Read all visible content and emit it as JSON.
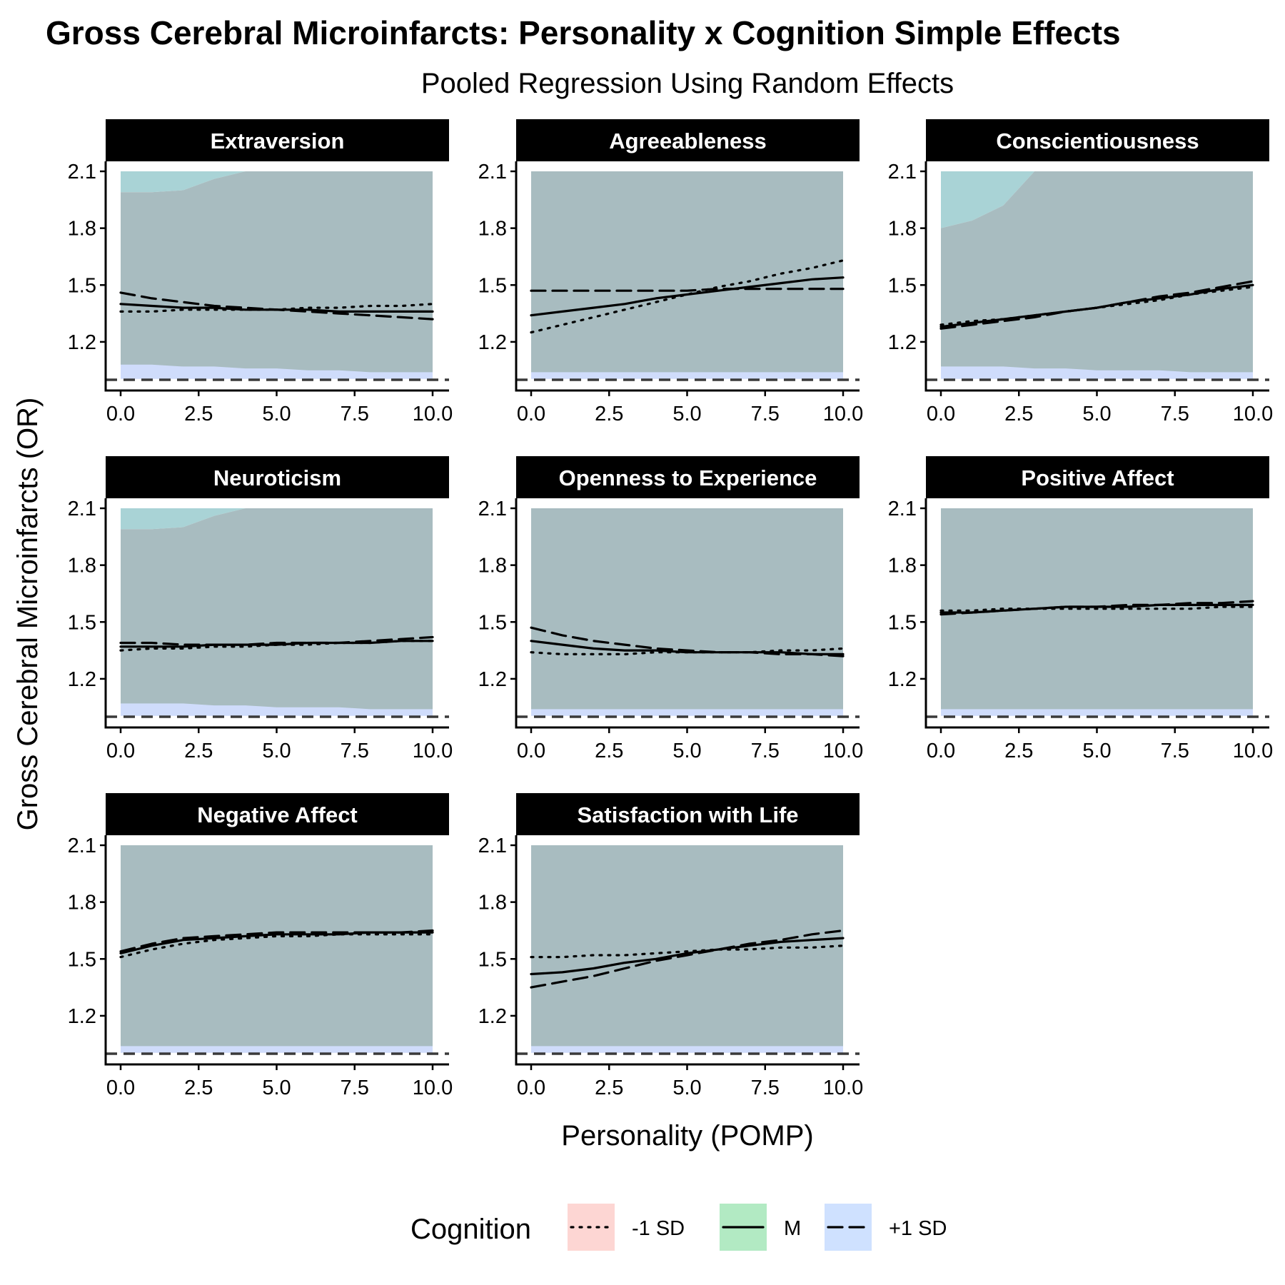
{
  "chart_data": {
    "type": "line",
    "title": "Gross Cerebral Microinfarcts: Personality x Cognition Simple Effects",
    "subtitle": "Pooled Regression Using Random Effects",
    "xlabel": "Personality (POMP)",
    "ylabel": "Gross Cerebral Microinfarcts (OR)",
    "xlim": [
      0,
      10
    ],
    "ylim": [
      1.0,
      2.1
    ],
    "x_ticks": [
      0,
      2.5,
      5,
      7.5,
      10
    ],
    "x_tick_labels": [
      "0.0",
      "2.5",
      "5.0",
      "7.5",
      "10.0"
    ],
    "y_ticks": [
      1.2,
      1.5,
      1.8,
      2.1
    ],
    "y_tick_labels": [
      "1.2",
      "1.5",
      "1.8",
      "2.1"
    ],
    "reference_line": 1.0,
    "grid": false,
    "legend": {
      "title": "Cognition",
      "position": "bottom",
      "entries": [
        {
          "label": "-1 SD",
          "fill": "#f8766d",
          "linetype": "dotted"
        },
        {
          "label": "M",
          "fill": "#00ba38",
          "linetype": "solid"
        },
        {
          "label": "+1 SD",
          "fill": "#619cff",
          "linetype": "dashed"
        }
      ]
    },
    "colors": {
      "ribbon_overlap": "#a8bcc0",
      "ribbon_teal": "#a9d3d6",
      "ribbon_blue": "#cfdcfb",
      "strip_bg": "#000000"
    },
    "x": [
      0,
      1,
      2,
      3,
      4,
      5,
      6,
      7,
      8,
      9,
      10
    ],
    "panels": [
      {
        "name": "Extraversion",
        "series": [
          {
            "name": "-1 SD",
            "values": [
              1.36,
              1.36,
              1.37,
              1.37,
              1.37,
              1.37,
              1.38,
              1.38,
              1.39,
              1.39,
              1.4
            ]
          },
          {
            "name": "M",
            "values": [
              1.4,
              1.39,
              1.38,
              1.38,
              1.37,
              1.37,
              1.37,
              1.36,
              1.36,
              1.36,
              1.36
            ]
          },
          {
            "name": "+1 SD",
            "values": [
              1.46,
              1.43,
              1.41,
              1.39,
              1.38,
              1.37,
              1.36,
              1.35,
              1.34,
              1.33,
              1.32
            ]
          }
        ],
        "ribbons": {
          "lower": [
            1.08,
            1.08,
            1.07,
            1.07,
            1.06,
            1.06,
            1.05,
            1.05,
            1.04,
            1.04,
            1.04
          ],
          "upper_teal": [
            1.99,
            1.99,
            2.0,
            2.06,
            2.1,
            2.1,
            2.1,
            2.1,
            2.1,
            2.1,
            2.1
          ],
          "upper_blue": null
        }
      },
      {
        "name": "Agreeableness",
        "series": [
          {
            "name": "-1 SD",
            "values": [
              1.25,
              1.29,
              1.33,
              1.37,
              1.41,
              1.45,
              1.49,
              1.52,
              1.56,
              1.59,
              1.63
            ]
          },
          {
            "name": "M",
            "values": [
              1.34,
              1.36,
              1.38,
              1.4,
              1.43,
              1.45,
              1.47,
              1.49,
              1.51,
              1.53,
              1.54
            ]
          },
          {
            "name": "+1 SD",
            "values": [
              1.47,
              1.47,
              1.47,
              1.47,
              1.47,
              1.47,
              1.48,
              1.48,
              1.48,
              1.48,
              1.48
            ]
          }
        ],
        "ribbons": {
          "lower": [
            1.04,
            1.04,
            1.04,
            1.04,
            1.04,
            1.04,
            1.04,
            1.04,
            1.04,
            1.04,
            1.04
          ],
          "upper_teal": null,
          "upper_blue": null
        }
      },
      {
        "name": "Conscientiousness",
        "series": [
          {
            "name": "-1 SD",
            "values": [
              1.29,
              1.31,
              1.32,
              1.34,
              1.36,
              1.38,
              1.4,
              1.42,
              1.45,
              1.47,
              1.49
            ]
          },
          {
            "name": "M",
            "values": [
              1.28,
              1.3,
              1.32,
              1.34,
              1.36,
              1.38,
              1.41,
              1.43,
              1.45,
              1.48,
              1.5
            ]
          },
          {
            "name": "+1 SD",
            "values": [
              1.27,
              1.29,
              1.31,
              1.33,
              1.36,
              1.38,
              1.41,
              1.44,
              1.46,
              1.49,
              1.52
            ]
          }
        ],
        "ribbons": {
          "lower": [
            1.07,
            1.07,
            1.07,
            1.06,
            1.06,
            1.05,
            1.05,
            1.05,
            1.04,
            1.04,
            1.04
          ],
          "upper_teal": [
            1.8,
            1.84,
            1.92,
            2.1,
            2.1,
            2.1,
            2.1,
            2.1,
            2.1,
            2.1,
            2.1
          ],
          "upper_blue": [
            1.92,
            1.96,
            2.1,
            2.1,
            2.1,
            2.1,
            2.1,
            2.1,
            2.1,
            2.1,
            2.1
          ]
        }
      },
      {
        "name": "Neuroticism",
        "series": [
          {
            "name": "-1 SD",
            "values": [
              1.35,
              1.36,
              1.36,
              1.37,
              1.37,
              1.38,
              1.38,
              1.39,
              1.39,
              1.4,
              1.4
            ]
          },
          {
            "name": "M",
            "values": [
              1.37,
              1.37,
              1.37,
              1.38,
              1.38,
              1.38,
              1.39,
              1.39,
              1.39,
              1.4,
              1.4
            ]
          },
          {
            "name": "+1 SD",
            "values": [
              1.39,
              1.39,
              1.38,
              1.38,
              1.38,
              1.39,
              1.39,
              1.39,
              1.4,
              1.41,
              1.42
            ]
          }
        ],
        "ribbons": {
          "lower": [
            1.07,
            1.07,
            1.07,
            1.06,
            1.06,
            1.05,
            1.05,
            1.05,
            1.04,
            1.04,
            1.04
          ],
          "upper_teal": [
            1.99,
            1.99,
            2.0,
            2.06,
            2.1,
            2.1,
            2.1,
            2.1,
            2.1,
            2.1,
            2.1
          ],
          "upper_blue": [
            2.07,
            2.07,
            2.1,
            2.1,
            2.1,
            2.1,
            2.1,
            2.1,
            2.1,
            2.1,
            2.1
          ]
        }
      },
      {
        "name": "Openness to Experience",
        "series": [
          {
            "name": "-1 SD",
            "values": [
              1.34,
              1.33,
              1.33,
              1.33,
              1.34,
              1.34,
              1.34,
              1.34,
              1.35,
              1.35,
              1.36
            ]
          },
          {
            "name": "M",
            "values": [
              1.4,
              1.38,
              1.36,
              1.35,
              1.35,
              1.34,
              1.34,
              1.34,
              1.34,
              1.33,
              1.33
            ]
          },
          {
            "name": "+1 SD",
            "values": [
              1.47,
              1.43,
              1.4,
              1.38,
              1.36,
              1.35,
              1.34,
              1.34,
              1.33,
              1.33,
              1.32
            ]
          }
        ],
        "ribbons": {
          "lower": [
            1.04,
            1.04,
            1.04,
            1.04,
            1.04,
            1.04,
            1.04,
            1.04,
            1.04,
            1.04,
            1.04
          ],
          "upper_teal": null,
          "upper_blue": null
        }
      },
      {
        "name": "Positive Affect",
        "series": [
          {
            "name": "-1 SD",
            "values": [
              1.56,
              1.56,
              1.57,
              1.57,
              1.57,
              1.57,
              1.57,
              1.57,
              1.57,
              1.58,
              1.58
            ]
          },
          {
            "name": "M",
            "values": [
              1.55,
              1.55,
              1.56,
              1.57,
              1.58,
              1.58,
              1.58,
              1.59,
              1.59,
              1.59,
              1.59
            ]
          },
          {
            "name": "+1 SD",
            "values": [
              1.54,
              1.55,
              1.56,
              1.57,
              1.58,
              1.58,
              1.59,
              1.59,
              1.6,
              1.6,
              1.61
            ]
          }
        ],
        "ribbons": {
          "lower": [
            1.04,
            1.04,
            1.04,
            1.04,
            1.04,
            1.04,
            1.04,
            1.04,
            1.04,
            1.04,
            1.04
          ],
          "upper_teal": null,
          "upper_blue": null
        }
      },
      {
        "name": "Negative Affect",
        "series": [
          {
            "name": "-1 SD",
            "values": [
              1.51,
              1.55,
              1.58,
              1.6,
              1.61,
              1.62,
              1.62,
              1.63,
              1.63,
              1.63,
              1.63
            ]
          },
          {
            "name": "M",
            "values": [
              1.53,
              1.57,
              1.6,
              1.61,
              1.62,
              1.63,
              1.63,
              1.63,
              1.64,
              1.64,
              1.64
            ]
          },
          {
            "name": "+1 SD",
            "values": [
              1.54,
              1.58,
              1.61,
              1.62,
              1.63,
              1.64,
              1.64,
              1.64,
              1.64,
              1.64,
              1.65
            ]
          }
        ],
        "ribbons": {
          "lower": [
            1.04,
            1.04,
            1.04,
            1.04,
            1.04,
            1.04,
            1.04,
            1.04,
            1.04,
            1.04,
            1.04
          ],
          "upper_teal": null,
          "upper_blue": null
        }
      },
      {
        "name": "Satisfaction with Life",
        "series": [
          {
            "name": "-1 SD",
            "values": [
              1.51,
              1.51,
              1.52,
              1.52,
              1.53,
              1.54,
              1.55,
              1.55,
              1.56,
              1.56,
              1.57
            ]
          },
          {
            "name": "M",
            "values": [
              1.42,
              1.43,
              1.45,
              1.48,
              1.5,
              1.53,
              1.55,
              1.57,
              1.59,
              1.6,
              1.61
            ]
          },
          {
            "name": "+1 SD",
            "values": [
              1.35,
              1.38,
              1.41,
              1.45,
              1.49,
              1.52,
              1.55,
              1.58,
              1.6,
              1.63,
              1.65
            ]
          }
        ],
        "ribbons": {
          "lower": [
            1.04,
            1.04,
            1.04,
            1.04,
            1.04,
            1.04,
            1.04,
            1.04,
            1.04,
            1.04,
            1.04
          ],
          "upper_teal": null,
          "upper_blue": null
        }
      }
    ]
  }
}
